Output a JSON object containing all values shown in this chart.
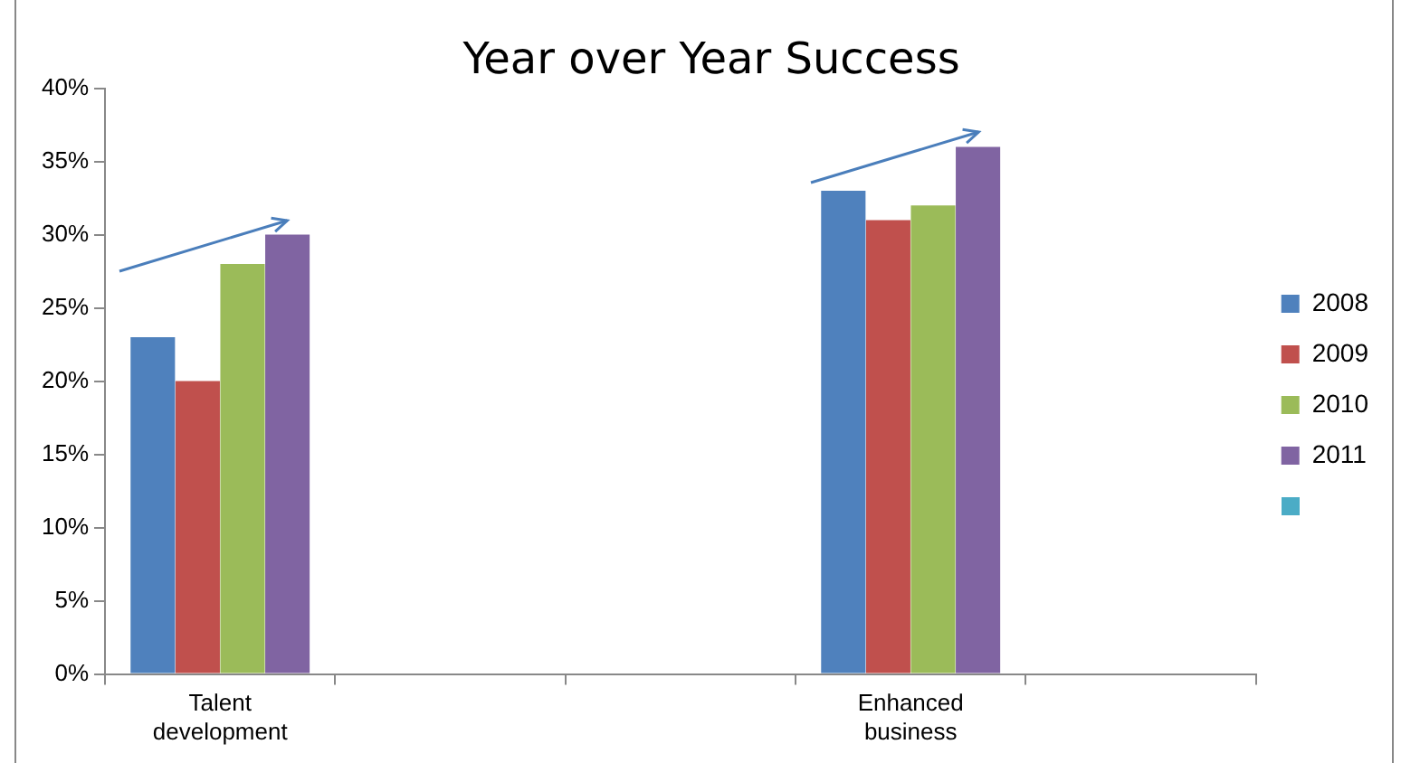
{
  "chart_data": {
    "type": "bar",
    "title": "Year over Year Success",
    "categories": [
      "Talent development",
      null,
      null,
      "Enhanced business",
      null
    ],
    "series": [
      {
        "name": "2008",
        "color": "#4f81bd",
        "values": [
          23,
          null,
          null,
          33,
          null
        ]
      },
      {
        "name": "2009",
        "color": "#c0504d",
        "values": [
          20,
          null,
          null,
          31,
          null
        ]
      },
      {
        "name": "2010",
        "color": "#9bbb59",
        "values": [
          28,
          null,
          null,
          32,
          null
        ]
      },
      {
        "name": "2011",
        "color": "#8064a2",
        "values": [
          30,
          null,
          null,
          36,
          null
        ]
      }
    ],
    "ylim": [
      0,
      40
    ],
    "yticks": [
      {
        "value": 0,
        "label": "0%"
      },
      {
        "value": 5,
        "label": "5%"
      },
      {
        "value": 10,
        "label": "10%"
      },
      {
        "value": 15,
        "label": "15%"
      },
      {
        "value": 20,
        "label": "20%"
      },
      {
        "value": 25,
        "label": "25%"
      },
      {
        "value": 30,
        "label": "30%"
      },
      {
        "value": 35,
        "label": "35%"
      },
      {
        "value": 40,
        "label": "40%"
      }
    ],
    "grid": false,
    "legend": "right"
  }
}
